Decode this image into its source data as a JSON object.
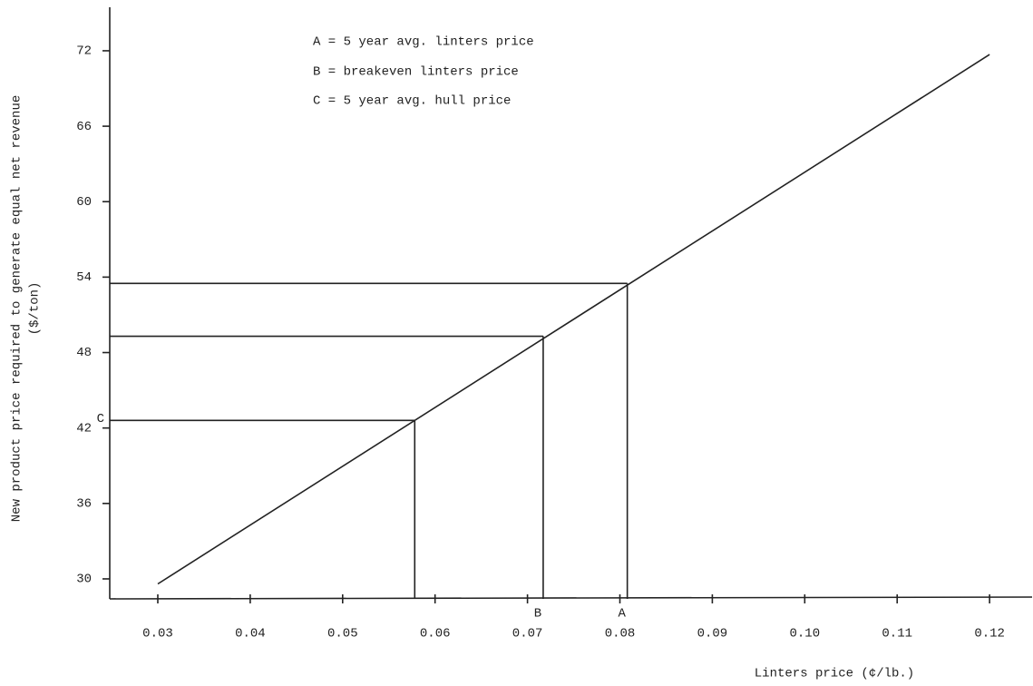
{
  "chart_data": {
    "type": "line",
    "x_label": "Linters price (¢/lb.)",
    "y_label": [
      "New product price required to generate equal net revenue",
      "($/ton)"
    ],
    "annotations": [
      "A = 5 year avg. linters price",
      "B = breakeven linters price",
      "C = 5 year avg. hull price"
    ],
    "x": [
      0.03,
      0.12
    ],
    "values": [
      29.6,
      71.7
    ],
    "color": "#111111",
    "reference_points": [
      {
        "label": "C",
        "x": 0.0578,
        "y": 42.6,
        "label_at": "y"
      },
      {
        "label": "B",
        "x": 0.0717,
        "y": 49.3,
        "label_at": "x"
      },
      {
        "label": "A",
        "x": 0.0808,
        "y": 53.5,
        "label_at": "x"
      }
    ],
    "xlim": [
      0.0248,
      0.1246
    ],
    "ylim": [
      28.41,
      75.46
    ],
    "xticks": [
      0.03,
      0.04,
      0.05,
      0.06,
      0.07,
      0.08,
      0.09,
      {
        "value": 0.1,
        "label": "0.10"
      },
      0.11,
      0.12
    ],
    "yticks": [
      30,
      36,
      42,
      48,
      54,
      60,
      66,
      72
    ],
    "grid": false
  }
}
